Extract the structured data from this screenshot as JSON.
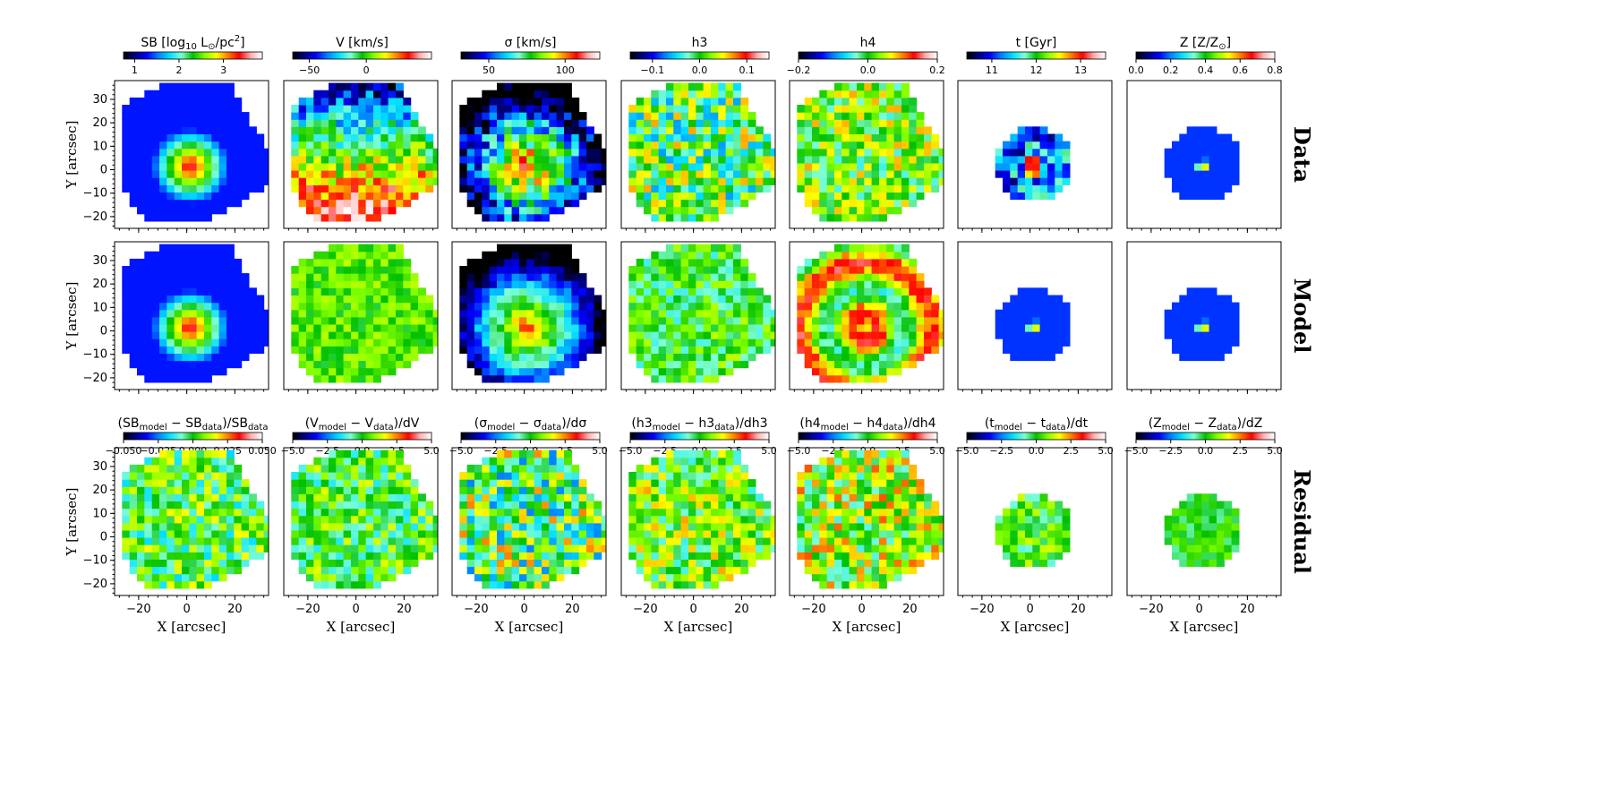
{
  "figure": {
    "row_labels": [
      "Data",
      "Model",
      "Residual"
    ],
    "y_axis_label": "Y [arcsec]",
    "x_axis_label": "X [arcsec]",
    "x_ticks": [
      "−20",
      "0",
      "20"
    ],
    "y_ticks": [
      "30",
      "20",
      "10",
      "0",
      "−10",
      "−20"
    ]
  },
  "colormap": [
    "#000000",
    "#00007f",
    "#0000ff",
    "#0080ff",
    "#00e0ff",
    "#7fffd4",
    "#00c000",
    "#7fff00",
    "#ffff00",
    "#ff8000",
    "#ff0000",
    "#ffb0b0",
    "#ffffff"
  ],
  "chart_data": [
    {
      "type": "heatmap",
      "row": "Data / Model",
      "colorbar_labels": [
        {
          "pre": "SB [log",
          "sub": "10",
          "mid": " L",
          "sub2": "⊙",
          "post": "/pc",
          "sup": "2",
          "end": "]",
          "ticks": [
            "1",
            "2",
            "3"
          ]
        },
        {
          "pre": "V [km/s]",
          "ticks": [
            "−50",
            "0"
          ]
        },
        {
          "pre": "σ [km/s]",
          "ticks": [
            "50",
            "100"
          ]
        },
        {
          "pre": "h3",
          "ticks": [
            "−0.1",
            "0.0",
            "0.1"
          ]
        },
        {
          "pre": "h4",
          "ticks": [
            "−0.2",
            "0.0",
            "0.2"
          ]
        },
        {
          "pre": "t [Gyr]",
          "ticks": [
            "11",
            "12",
            "13"
          ]
        },
        {
          "pre": "Z [Z/Z",
          "sub": "⊙",
          "post": "]",
          "ticks": [
            "0.0",
            "0.2",
            "0.4",
            "0.6",
            "0.8"
          ]
        }
      ],
      "xlim": [
        -30,
        34
      ],
      "ylim": [
        -25,
        38
      ]
    },
    {
      "type": "heatmap",
      "row": "Residual",
      "colorbar_labels": [
        {
          "pre": "(SB",
          "sub": "model",
          "mid": " − SB",
          "sub2": "data",
          "post": ")/SB",
          "sub3": "data",
          "ticks": [
            "−0.050",
            "−0.025",
            "0.000",
            "0.025",
            "0.050"
          ]
        },
        {
          "pre": "(V",
          "sub": "model",
          "mid": " − V",
          "sub2": "data",
          "post": ")/dV",
          "ticks": [
            "−5.0",
            "−2.5",
            "0.0",
            "2.5",
            "5.0"
          ]
        },
        {
          "pre": "(σ",
          "sub": "model",
          "mid": " − σ",
          "sub2": "data",
          "post": ")/dσ",
          "ticks": [
            "−5.0",
            "−2.5",
            "0.0",
            "2.5",
            "5.0"
          ]
        },
        {
          "pre": "(h3",
          "sub": "model",
          "mid": " − h3",
          "sub2": "data",
          "post": ")/dh3",
          "ticks": [
            "−5.0",
            "−2.5",
            "0.0",
            "2.5",
            "5.0"
          ]
        },
        {
          "pre": "(h4",
          "sub": "model",
          "mid": " − h4",
          "sub2": "data",
          "post": ")/dh4",
          "ticks": [
            "−5.0",
            "−2.5",
            "0.0",
            "2.5",
            "5.0"
          ]
        },
        {
          "pre": "(t",
          "sub": "model",
          "mid": " − t",
          "sub2": "data",
          "post": ")/dt",
          "ticks": [
            "−5.0",
            "−2.5",
            "0.0",
            "2.5",
            "5.0"
          ]
        },
        {
          "pre": "(Z",
          "sub": "model",
          "mid": " − Z",
          "sub2": "data",
          "post": ")/dZ",
          "ticks": [
            "−5.0",
            "−2.5",
            "0.0",
            "2.5",
            "5.0"
          ]
        }
      ],
      "xlim": [
        -30,
        34
      ],
      "ylim": [
        -25,
        38
      ]
    }
  ]
}
